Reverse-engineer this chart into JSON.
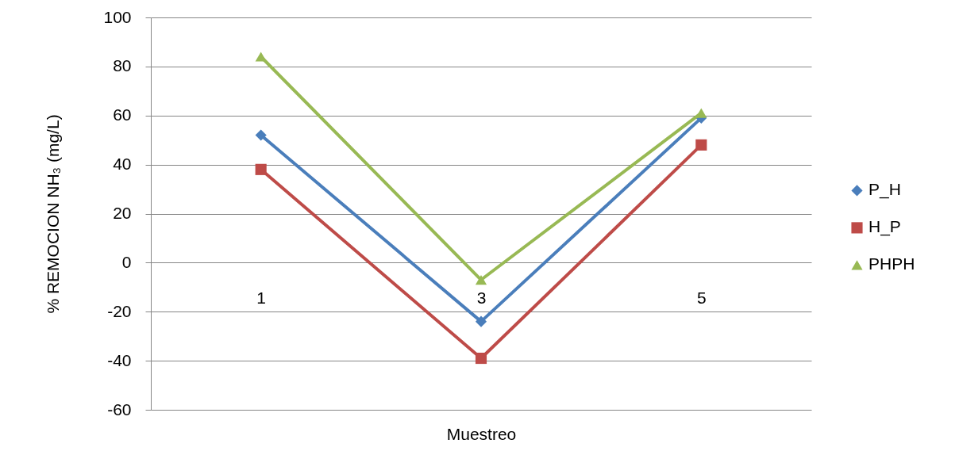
{
  "chart_data": {
    "type": "line",
    "xlabel": "Muestreo",
    "ylabel": "% REMOCION NH₃ (mg/L)",
    "categories": [
      "1",
      "3",
      "5"
    ],
    "series": [
      {
        "name": "P_H",
        "color": "#4a7ebb",
        "marker": "diamond",
        "values": [
          52,
          -24,
          59
        ]
      },
      {
        "name": "H_P",
        "color": "#be4b48",
        "marker": "square",
        "values": [
          38,
          -39,
          48
        ]
      },
      {
        "name": "PHPH",
        "color": "#98b954",
        "marker": "triangle",
        "values": [
          84,
          -7,
          61
        ]
      }
    ],
    "ylim": [
      -60,
      100
    ],
    "yticks": [
      -60,
      -40,
      -20,
      0,
      20,
      40,
      60,
      80,
      100
    ],
    "grid": "y",
    "legend": "right"
  }
}
